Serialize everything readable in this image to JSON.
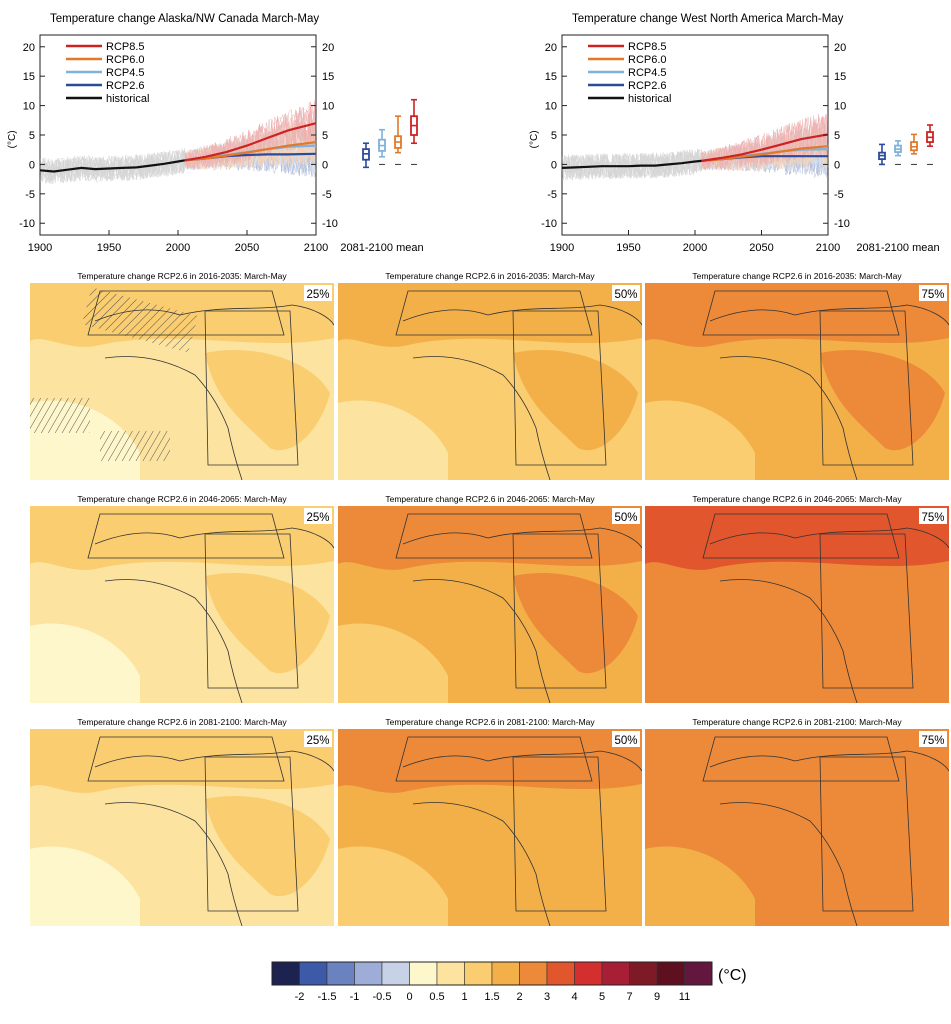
{
  "colors": {
    "rcp85": "#cc2222",
    "rcp60": "#e07a2a",
    "rcp45": "#7fb1dc",
    "rcp26": "#2b4a9a",
    "historical": "#111111",
    "land_outline": "#333333",
    "hatch": "#555555"
  },
  "chart_data": [
    {
      "type": "line",
      "title": "Temperature change Alaska/NW Canada March-May",
      "ylabel": "(°C)",
      "xlim": [
        1900,
        2100
      ],
      "ylim": [
        -12,
        22
      ],
      "x_ticks": [
        "1900",
        "1950",
        "2000",
        "2050",
        "2100"
      ],
      "y_ticks": [
        "-10",
        "-5",
        "0",
        "5",
        "10",
        "15",
        "20"
      ],
      "legend_position": "top-left",
      "legend": [
        "RCP8.5",
        "RCP6.0",
        "RCP4.5",
        "RCP2.6",
        "historical"
      ],
      "series": [
        {
          "name": "historical",
          "x": [
            1900,
            1910,
            1920,
            1930,
            1940,
            1950,
            1960,
            1970,
            1980,
            1990,
            2000,
            2005
          ],
          "values": [
            -1.0,
            -1.2,
            -0.9,
            -0.6,
            -0.8,
            -0.7,
            -0.6,
            -0.5,
            -0.2,
            0.1,
            0.5,
            0.7
          ]
        },
        {
          "name": "RCP2.6",
          "x": [
            2005,
            2020,
            2035,
            2050,
            2065,
            2080,
            2100
          ],
          "values": [
            0.7,
            1.0,
            1.4,
            1.6,
            1.7,
            1.7,
            1.8
          ]
        },
        {
          "name": "RCP4.5",
          "x": [
            2005,
            2020,
            2035,
            2050,
            2065,
            2080,
            2100
          ],
          "values": [
            0.7,
            1.1,
            1.6,
            2.1,
            2.6,
            3.0,
            3.2
          ]
        },
        {
          "name": "RCP6.0",
          "x": [
            2005,
            2020,
            2035,
            2050,
            2065,
            2080,
            2100
          ],
          "values": [
            0.7,
            1.0,
            1.5,
            2.0,
            2.6,
            3.2,
            3.8
          ]
        },
        {
          "name": "RCP8.5",
          "x": [
            2005,
            2020,
            2035,
            2050,
            2065,
            2080,
            2100
          ],
          "values": [
            0.7,
            1.3,
            2.1,
            3.2,
            4.5,
            5.8,
            7.0
          ]
        }
      ],
      "boxplot": {
        "label": "2081-2100 mean",
        "boxes": [
          {
            "name": "RCP2.6",
            "min": -0.5,
            "q1": 0.8,
            "median": 1.8,
            "q3": 2.6,
            "max": 3.6
          },
          {
            "name": "RCP4.5",
            "min": 1.3,
            "q1": 2.3,
            "median": 3.2,
            "q3": 4.2,
            "max": 5.9
          },
          {
            "name": "RCP6.0",
            "min": 2.0,
            "q1": 2.8,
            "median": 3.8,
            "q3": 4.8,
            "max": 8.2
          },
          {
            "name": "RCP8.5",
            "min": 3.6,
            "q1": 5.0,
            "median": 6.6,
            "q3": 8.2,
            "max": 11.0
          }
        ]
      }
    },
    {
      "type": "line",
      "title": "Temperature change West North America March-May",
      "ylabel": "(°C)",
      "xlim": [
        1900,
        2100
      ],
      "ylim": [
        -12,
        22
      ],
      "x_ticks": [
        "1900",
        "1950",
        "2000",
        "2050",
        "2100"
      ],
      "y_ticks": [
        "-10",
        "-5",
        "0",
        "5",
        "10",
        "15",
        "20"
      ],
      "legend_position": "top-left",
      "legend": [
        "RCP8.5",
        "RCP6.0",
        "RCP4.5",
        "RCP2.6",
        "historical"
      ],
      "series": [
        {
          "name": "historical",
          "x": [
            1900,
            1910,
            1920,
            1930,
            1940,
            1950,
            1960,
            1970,
            1980,
            1990,
            2000,
            2005
          ],
          "values": [
            -0.6,
            -0.5,
            -0.4,
            -0.3,
            -0.3,
            -0.3,
            -0.2,
            -0.2,
            0.0,
            0.2,
            0.5,
            0.6
          ]
        },
        {
          "name": "RCP2.6",
          "x": [
            2005,
            2020,
            2035,
            2050,
            2065,
            2080,
            2100
          ],
          "values": [
            0.6,
            0.9,
            1.2,
            1.4,
            1.4,
            1.4,
            1.4
          ]
        },
        {
          "name": "RCP4.5",
          "x": [
            2005,
            2020,
            2035,
            2050,
            2065,
            2080,
            2100
          ],
          "values": [
            0.6,
            1.0,
            1.4,
            1.8,
            2.2,
            2.5,
            2.6
          ]
        },
        {
          "name": "RCP6.0",
          "x": [
            2005,
            2020,
            2035,
            2050,
            2065,
            2080,
            2100
          ],
          "values": [
            0.6,
            0.9,
            1.3,
            1.7,
            2.2,
            2.7,
            3.1
          ]
        },
        {
          "name": "RCP8.5",
          "x": [
            2005,
            2020,
            2035,
            2050,
            2065,
            2080,
            2100
          ],
          "values": [
            0.6,
            1.1,
            1.7,
            2.5,
            3.4,
            4.3,
            5.1
          ]
        }
      ],
      "boxplot": {
        "label": "2081-2100 mean",
        "boxes": [
          {
            "name": "RCP2.6",
            "min": 0.0,
            "q1": 0.9,
            "median": 1.5,
            "q3": 2.0,
            "max": 3.4
          },
          {
            "name": "RCP4.5",
            "min": 1.5,
            "q1": 2.1,
            "median": 2.6,
            "q3": 3.2,
            "max": 4.0
          },
          {
            "name": "RCP6.0",
            "min": 1.8,
            "q1": 2.4,
            "median": 3.0,
            "q3": 3.8,
            "max": 5.1
          },
          {
            "name": "RCP8.5",
            "min": 3.1,
            "q1": 3.8,
            "median": 4.6,
            "q3": 5.5,
            "max": 6.7
          }
        ]
      }
    },
    {
      "type": "heatmap",
      "maps": [
        {
          "title": "Temperature change RCP2.6 in 2016-2035: March-May",
          "percentile": "25%",
          "level": 0.6,
          "hatched": true
        },
        {
          "title": "Temperature change RCP2.6 in 2016-2035: March-May",
          "percentile": "50%",
          "level": 1.2,
          "hatched": false
        },
        {
          "title": "Temperature change RCP2.6 in 2016-2035: March-May",
          "percentile": "75%",
          "level": 1.9,
          "hatched": false
        },
        {
          "title": "Temperature change RCP2.6 in 2046-2065: March-May",
          "percentile": "25%",
          "level": 0.9,
          "hatched": false
        },
        {
          "title": "Temperature change RCP2.6 in 2046-2065: March-May",
          "percentile": "50%",
          "level": 1.6,
          "hatched": false
        },
        {
          "title": "Temperature change RCP2.6 in 2046-2065: March-May",
          "percentile": "75%",
          "level": 2.5,
          "hatched": false
        },
        {
          "title": "Temperature change RCP2.6 in 2081-2100: March-May",
          "percentile": "25%",
          "level": 0.8,
          "hatched": false
        },
        {
          "title": "Temperature change RCP2.6 in 2081-2100: March-May",
          "percentile": "50%",
          "level": 1.5,
          "hatched": false
        },
        {
          "title": "Temperature change RCP2.6 in 2081-2100: March-May",
          "percentile": "75%",
          "level": 2.4,
          "hatched": false
        }
      ],
      "colorbar": {
        "unit": "(°C)",
        "colors": [
          "#1c2350",
          "#3d5aa8",
          "#6b82c0",
          "#9eacd8",
          "#c8d2e6",
          "#fff7cc",
          "#fde3a0",
          "#f9cd70",
          "#f3b048",
          "#ec8a3a",
          "#e2562e",
          "#d32f2f",
          "#a71f35",
          "#7e1a25",
          "#5e1020",
          "#63173f"
        ],
        "labels": [
          "-2",
          "-1.5",
          "-1",
          "-0.5",
          "0",
          "0.5",
          "1",
          "1.5",
          "2",
          "3",
          "4",
          "5",
          "7",
          "9",
          "11"
        ]
      }
    }
  ]
}
